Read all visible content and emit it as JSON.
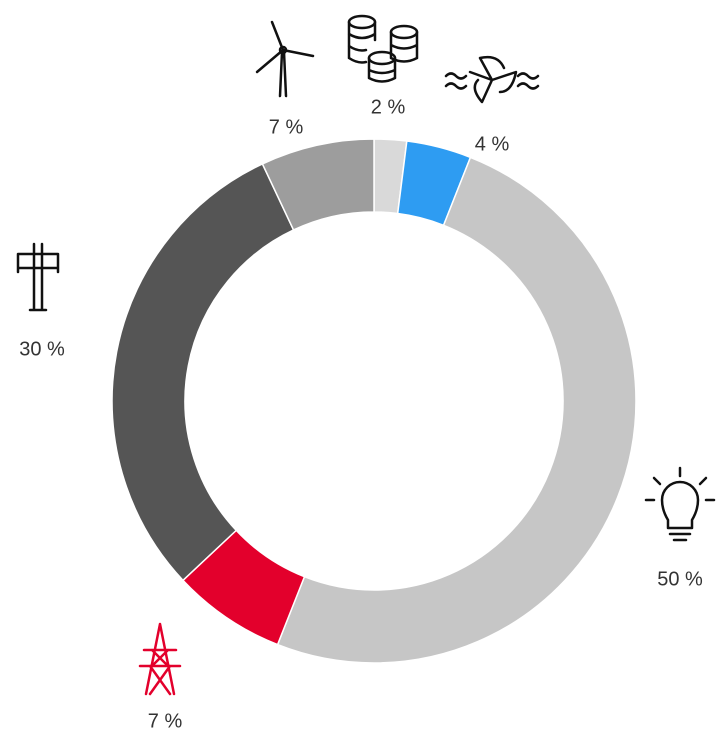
{
  "chart_data": {
    "type": "donut",
    "values": [
      2,
      4,
      50,
      7,
      30,
      7
    ],
    "value_labels": [
      "2 %",
      "4 %",
      "50 %",
      "7 %",
      "30 %",
      "7 %"
    ],
    "colors": [
      "#d9d9d9",
      "#2e9cf2",
      "#c6c6c6",
      "#e3002c",
      "#555555",
      "#9d9d9d"
    ]
  }
}
